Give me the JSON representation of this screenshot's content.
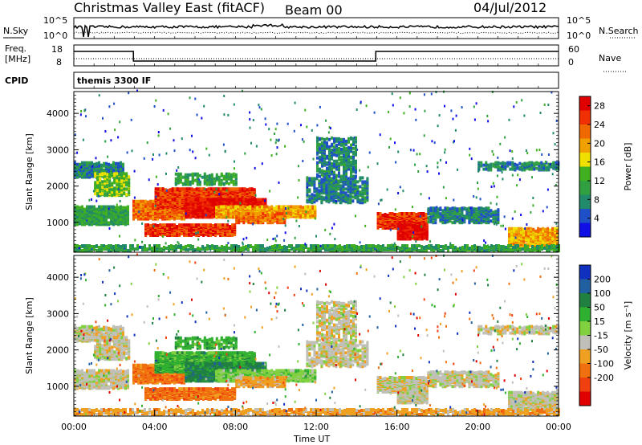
{
  "header": {
    "title": "Christmas Valley East (fitACF)",
    "beam": "Beam 00",
    "date": "04/Jul/2012"
  },
  "noise_panel": {
    "left_label": "N.Sky",
    "left_ticks": [
      "10^5",
      "10^0"
    ],
    "right_ticks": [
      "10^5",
      "10^0"
    ],
    "right_label": "N.Search"
  },
  "freq_panel": {
    "left_label_1": "Freq.",
    "left_label_2": "[MHz]",
    "left_ticks": [
      "18",
      "8"
    ],
    "right_ticks": [
      "60",
      "0"
    ],
    "right_label": "Nave"
  },
  "cpid_panel": {
    "label": "CPID",
    "mode_text": "themis 3300 IF"
  },
  "chart_data": [
    {
      "type": "heatmap",
      "name": "power",
      "ylabel": "Slant Range [km]",
      "xlabel": "Time UT",
      "yticks": [
        1000,
        2000,
        3000,
        4000
      ],
      "ylim": [
        180,
        4600
      ],
      "xticks": [
        "00:00",
        "04:00",
        "08:00",
        "12:00",
        "16:00",
        "20:00",
        "00:00"
      ],
      "xlim_hours": [
        0,
        24
      ],
      "colorbar": {
        "label": "Power [dB]",
        "ticks": [
          4,
          8,
          12,
          16,
          20,
          24,
          28
        ],
        "range": [
          0,
          30
        ],
        "colors": [
          "#1010e6",
          "#2050c8",
          "#208a6a",
          "#30a040",
          "#40b020",
          "#f0e000",
          "#f0a000",
          "#f06800",
          "#f03000",
          "#e00000"
        ]
      }
    },
    {
      "type": "heatmap",
      "name": "velocity",
      "ylabel": "Slant Range [km]",
      "xlabel": "Time UT",
      "yticks": [
        1000,
        2000,
        3000,
        4000
      ],
      "ylim": [
        180,
        4600
      ],
      "xticks": [
        "00:00",
        "04:00",
        "08:00",
        "12:00",
        "16:00",
        "20:00",
        "00:00"
      ],
      "xlim_hours": [
        0,
        24
      ],
      "colorbar": {
        "label": "Velocity [m s⁻¹]",
        "ticks": [
          "200",
          "100",
          "50",
          "15",
          "-15",
          "-50",
          "-100",
          "-200"
        ],
        "colors": [
          "#1030c0",
          "#2060a0",
          "#208040",
          "#30b030",
          "#80d040",
          "#c0c0b8",
          "#f0a020",
          "#f07010",
          "#f04010",
          "#e00000"
        ]
      }
    }
  ]
}
